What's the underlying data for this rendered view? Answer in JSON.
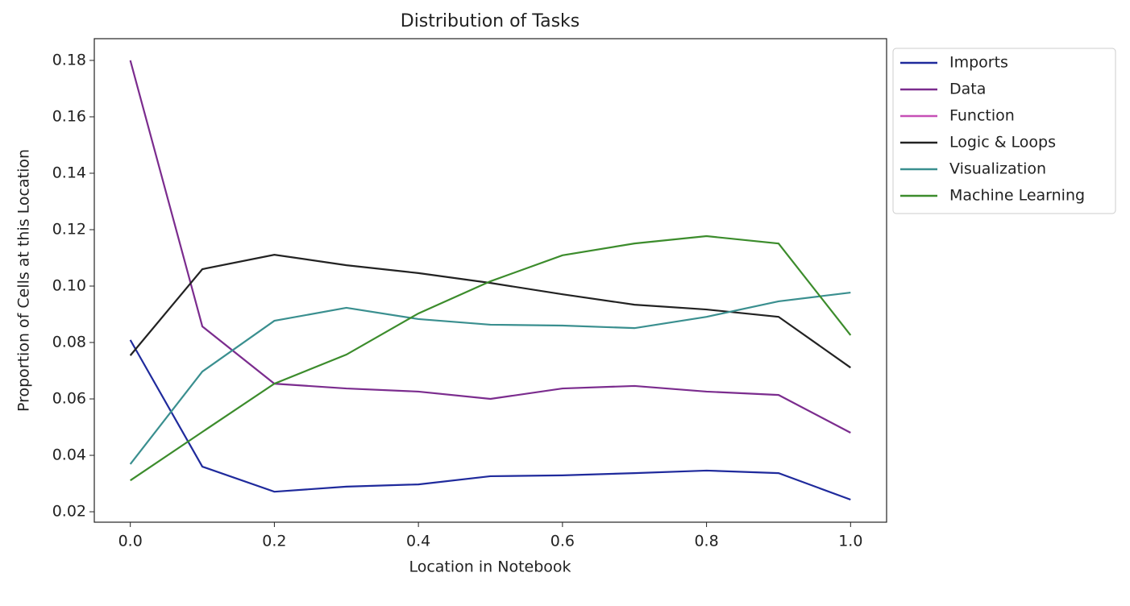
{
  "chart_data": {
    "type": "line",
    "title": "Distribution of Tasks",
    "x_label": "Location in Notebook",
    "y_label": "Proportion of Cells at this Location",
    "x": [
      0,
      0.1,
      0.2,
      0.3,
      0.4,
      0.5,
      0.6,
      0.7,
      0.8,
      0.9,
      1.0
    ],
    "series": [
      {
        "name": "Imports",
        "color": "#1f2a9c",
        "values": [
          0.0809,
          0.036,
          0.0271,
          0.0289,
          0.0297,
          0.0326,
          0.0329,
          0.0337,
          0.0346,
          0.0337,
          0.0243
        ]
      },
      {
        "name": "Data",
        "color": "#7b2c8e",
        "values": [
          0.18,
          0.0857,
          0.0654,
          0.0637,
          0.0626,
          0.06,
          0.0637,
          0.0646,
          0.0626,
          0.0614,
          0.048
        ]
      },
      {
        "name": "Function",
        "color": "#c64fb6",
        "values": [
          null,
          null,
          null,
          null,
          null,
          null,
          null,
          null,
          null,
          null,
          null
        ]
      },
      {
        "name": "Logic & Loops",
        "color": "#222222",
        "values": [
          0.0754,
          0.106,
          0.1111,
          0.1074,
          0.1046,
          0.1011,
          0.0971,
          0.0934,
          0.0917,
          0.0891,
          0.0711
        ]
      },
      {
        "name": "Visualization",
        "color": "#3a8f8f",
        "values": [
          0.0369,
          0.0697,
          0.0877,
          0.0923,
          0.0883,
          0.0863,
          0.086,
          0.0851,
          0.0891,
          0.0946,
          0.0977
        ]
      },
      {
        "name": "Machine Learning",
        "color": "#3c8c2c",
        "values": [
          0.0311,
          0.0483,
          0.0654,
          0.0757,
          0.0903,
          0.1017,
          0.1109,
          0.1151,
          0.1177,
          0.1151,
          0.0826
        ]
      }
    ],
    "xlim": [
      -0.05,
      1.05
    ],
    "xticks": [
      {
        "value": 0,
        "label": "0.0"
      },
      0.2,
      0.4,
      0.6,
      0.8,
      {
        "value": 1.0,
        "label": "1.0"
      }
    ],
    "ylim": [
      0.0163,
      0.1877
    ],
    "yticks": [
      0.02,
      0.04,
      0.06,
      0.08,
      {
        "value": 0.1,
        "label": "0.10"
      },
      0.12,
      0.14,
      0.16,
      0.18
    ],
    "legend": "upper-right-outside",
    "grid": false
  }
}
